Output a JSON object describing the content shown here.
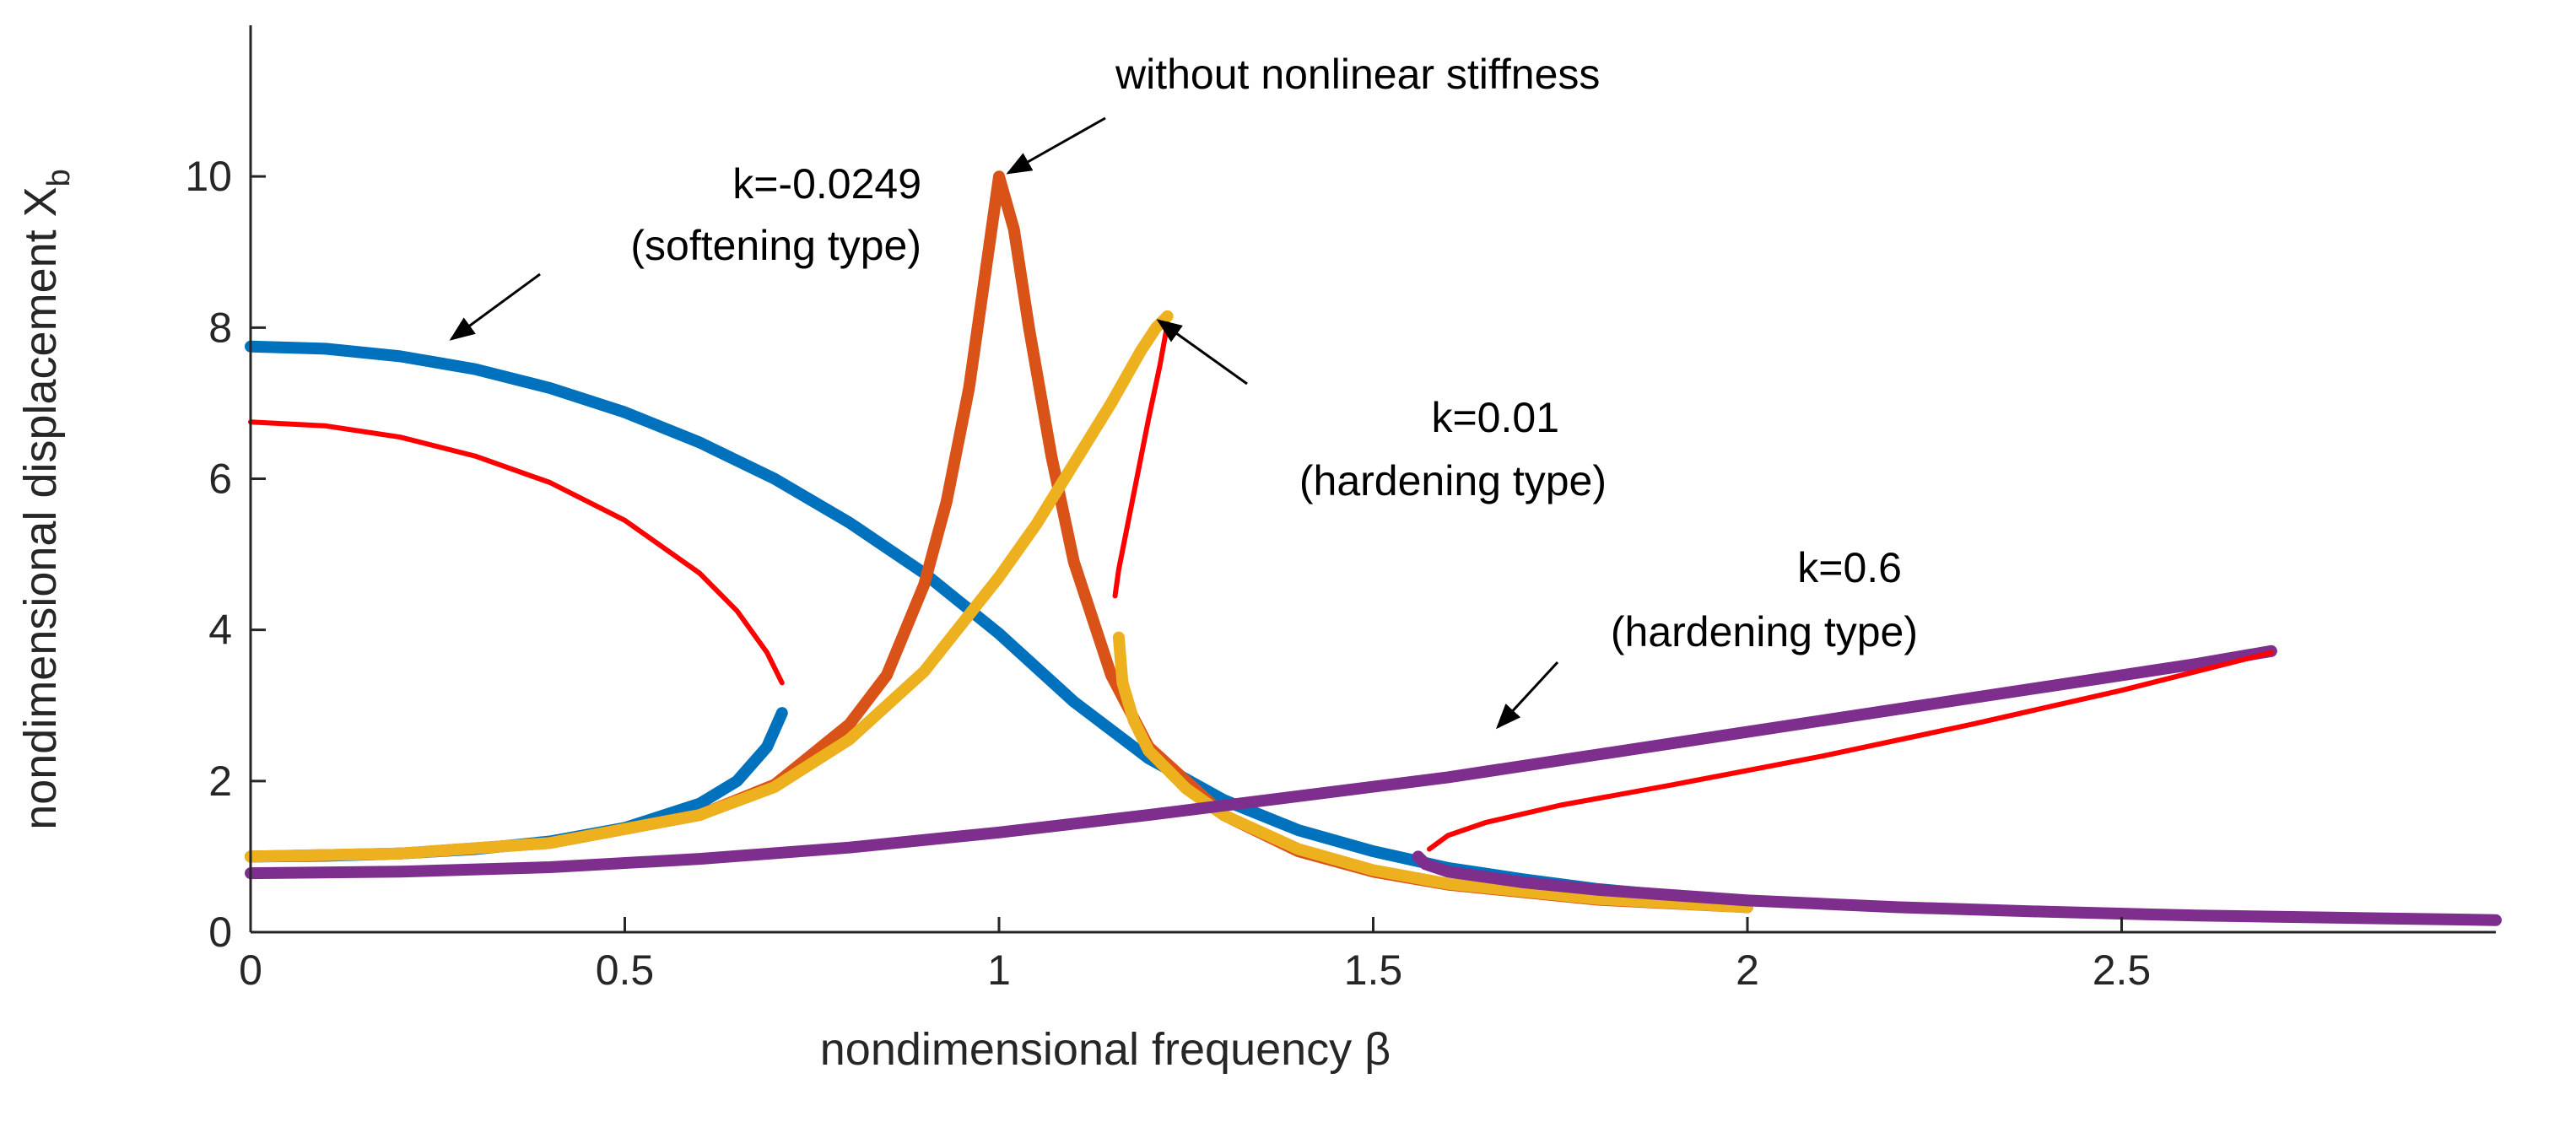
{
  "chart_data": {
    "type": "line",
    "title": "",
    "xlabel": "nondimensional frequency β",
    "ylabel_main": "nondimensional displacement X",
    "ylabel_sub": "b",
    "xlim": [
      0,
      3
    ],
    "ylim": [
      0,
      12
    ],
    "xticks": [
      0,
      0.5,
      1,
      1.5,
      2,
      2.5
    ],
    "xtick_labels": [
      "0",
      "0.5",
      "1",
      "1.5",
      "2",
      "2.5"
    ],
    "yticks": [
      0,
      2,
      4,
      6,
      8,
      10
    ],
    "ytick_labels": [
      "0",
      "2",
      "4",
      "6",
      "8",
      "10"
    ],
    "grid": false,
    "colors": {
      "softening": "#0072BD",
      "linear": "#D95319",
      "hardening_small": "#EDB120",
      "hardening_large": "#7E2F8E",
      "unstable": "#FF0000"
    },
    "series": [
      {
        "name": "k=-0.0249 (softening type) stable upper",
        "color": "#0072BD",
        "x": [
          0,
          0.1,
          0.2,
          0.3,
          0.4,
          0.5,
          0.6,
          0.7,
          0.8,
          0.9,
          1.0,
          1.1,
          1.2,
          1.3,
          1.4,
          1.5,
          1.6,
          1.7,
          1.8,
          1.9
        ],
        "y": [
          7.75,
          7.72,
          7.62,
          7.45,
          7.2,
          6.88,
          6.48,
          6.0,
          5.42,
          4.75,
          3.95,
          3.05,
          2.3,
          1.75,
          1.35,
          1.07,
          0.85,
          0.7,
          0.57,
          0.48
        ]
      },
      {
        "name": "k=-0.0249 (softening type) unstable",
        "color": "#FF0000",
        "x": [
          0,
          0.1,
          0.2,
          0.3,
          0.4,
          0.5,
          0.6,
          0.65,
          0.69,
          0.71
        ],
        "y": [
          6.75,
          6.7,
          6.55,
          6.3,
          5.95,
          5.45,
          4.75,
          4.25,
          3.7,
          3.3
        ]
      },
      {
        "name": "k=-0.0249 (softening type) stable lower",
        "color": "#0072BD",
        "x": [
          0,
          0.1,
          0.2,
          0.3,
          0.4,
          0.5,
          0.6,
          0.65,
          0.69,
          0.71
        ],
        "y": [
          1.0,
          1.01,
          1.04,
          1.1,
          1.2,
          1.38,
          1.7,
          2.0,
          2.45,
          2.9
        ]
      },
      {
        "name": "without nonlinear stiffness",
        "color": "#D95319",
        "x": [
          0,
          0.2,
          0.4,
          0.6,
          0.7,
          0.8,
          0.85,
          0.9,
          0.93,
          0.96,
          0.98,
          1.0,
          1.02,
          1.04,
          1.07,
          1.1,
          1.15,
          1.2,
          1.3,
          1.4,
          1.5,
          1.6,
          1.8,
          2.0
        ],
        "y": [
          1.0,
          1.04,
          1.18,
          1.55,
          1.95,
          2.75,
          3.4,
          4.6,
          5.7,
          7.2,
          8.6,
          10.0,
          9.3,
          8.0,
          6.3,
          4.9,
          3.4,
          2.45,
          1.55,
          1.07,
          0.8,
          0.63,
          0.43,
          0.33
        ]
      },
      {
        "name": "k=0.01 (hardening type) stable upper",
        "color": "#EDB120",
        "x": [
          0,
          0.2,
          0.4,
          0.6,
          0.7,
          0.8,
          0.9,
          1.0,
          1.05,
          1.1,
          1.15,
          1.19,
          1.21,
          1.225
        ],
        "y": [
          1.0,
          1.04,
          1.18,
          1.55,
          1.92,
          2.55,
          3.45,
          4.7,
          5.4,
          6.2,
          7.0,
          7.7,
          8.0,
          8.15
        ]
      },
      {
        "name": "k=0.01 (hardening type) unstable",
        "color": "#FF0000",
        "x": [
          1.225,
          1.215,
          1.2,
          1.185,
          1.17,
          1.16,
          1.155
        ],
        "y": [
          8.05,
          7.5,
          6.8,
          6.05,
          5.3,
          4.8,
          4.45
        ]
      },
      {
        "name": "k=0.01 (hardening type) stable lower",
        "color": "#EDB120",
        "x": [
          1.16,
          1.165,
          1.18,
          1.2,
          1.25,
          1.3,
          1.4,
          1.5,
          1.6,
          1.8,
          2.0
        ],
        "y": [
          3.9,
          3.3,
          2.8,
          2.4,
          1.9,
          1.55,
          1.1,
          0.82,
          0.64,
          0.44,
          0.33
        ]
      },
      {
        "name": "k=0.6 (hardening type) stable upper",
        "color": "#7E2F8E",
        "x": [
          0,
          0.2,
          0.4,
          0.6,
          0.8,
          1.0,
          1.2,
          1.4,
          1.6,
          1.8,
          2.0,
          2.2,
          2.4,
          2.6,
          2.7
        ],
        "y": [
          0.78,
          0.8,
          0.86,
          0.97,
          1.12,
          1.32,
          1.55,
          1.8,
          2.05,
          2.35,
          2.65,
          2.95,
          3.25,
          3.55,
          3.72
        ]
      },
      {
        "name": "k=0.6 (hardening type) unstable",
        "color": "#FF0000",
        "x": [
          2.7,
          2.5,
          2.3,
          2.1,
          1.9,
          1.75,
          1.65,
          1.6,
          1.575
        ],
        "y": [
          3.7,
          3.2,
          2.75,
          2.33,
          1.95,
          1.68,
          1.45,
          1.28,
          1.1
        ]
      },
      {
        "name": "k=0.6 (hardening type) stable lower",
        "color": "#7E2F8E",
        "x": [
          1.56,
          1.57,
          1.6,
          1.7,
          1.8,
          2.0,
          2.2,
          2.4,
          2.6,
          2.8,
          3.0
        ],
        "y": [
          1.0,
          0.9,
          0.8,
          0.66,
          0.56,
          0.42,
          0.33,
          0.27,
          0.22,
          0.19,
          0.16
        ]
      }
    ],
    "annotations": [
      {
        "text": "without nonlinear stiffness"
      },
      {
        "text": "k=-0.0249"
      },
      {
        "text": "(softening type)"
      },
      {
        "text": "k=0.01"
      },
      {
        "text": "(hardening type)"
      },
      {
        "text": "k=0.6"
      },
      {
        "text": "(hardening type)"
      }
    ]
  }
}
